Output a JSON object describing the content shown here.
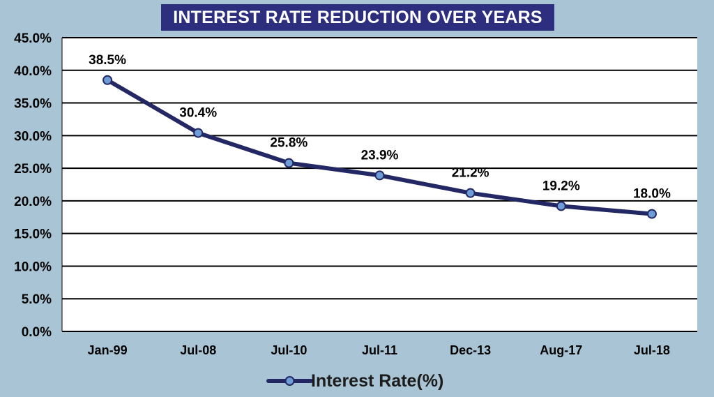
{
  "chart_data": {
    "type": "line",
    "title": "INTEREST RATE REDUCTION OVER YEARS",
    "categories": [
      "Jan-99",
      "Jul-08",
      "Jul-10",
      "Jul-11",
      "Dec-13",
      "Aug-17",
      "Jul-18"
    ],
    "series": [
      {
        "name": "Interest Rate(%)",
        "values": [
          38.5,
          30.4,
          25.8,
          23.9,
          21.2,
          19.2,
          18.0
        ],
        "data_labels": [
          "38.5%",
          "30.4%",
          "25.8%",
          "23.9%",
          "21.2%",
          "19.2%",
          "18.0%"
        ],
        "color": "#232865",
        "marker_color": "#6d9cd6"
      }
    ],
    "ylim": [
      0,
      45
    ],
    "yticks": [
      0,
      5,
      10,
      15,
      20,
      25,
      30,
      35,
      40,
      45
    ],
    "ytick_labels": [
      "0.0%",
      "5.0%",
      "10.0%",
      "15.0%",
      "20.0%",
      "25.0%",
      "30.0%",
      "35.0%",
      "40.0%",
      "45.0%"
    ],
    "xlabel": "",
    "ylabel": "",
    "grid": true,
    "legend": "bottom",
    "colors": {
      "background": "#a9c4d4",
      "plot_area": "#ffffff",
      "title_box": "#2d2f7e",
      "gridline": "#000000"
    }
  }
}
